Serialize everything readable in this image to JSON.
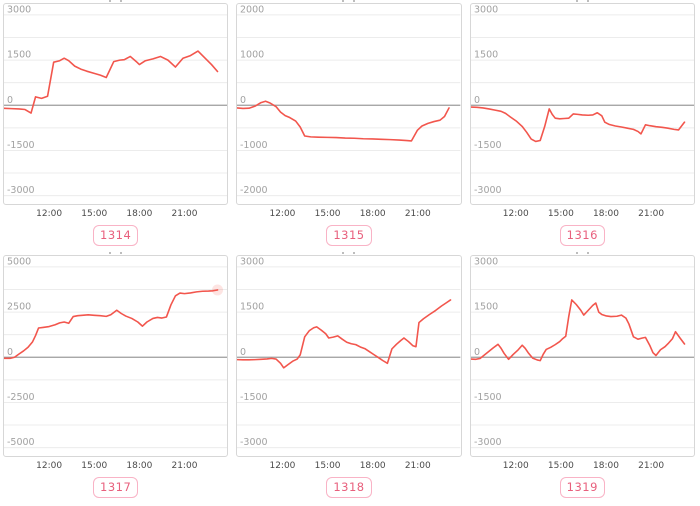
{
  "colors": {
    "line": "#f2564d",
    "line_halo": "rgba(242,86,77,0.16)",
    "zero_line": "#9b9b9b",
    "grid": "#ececec",
    "y_tick_text": "#a2a2a2",
    "x_tick_text": "#4a4a4a",
    "chart_border": "#d7d7d7",
    "button_border": "#f9b3c6",
    "button_text": "#e8607d"
  },
  "x_axis": {
    "tick_labels": [
      "12:00",
      "15:00",
      "18:00",
      "21:00"
    ],
    "tick_hours": [
      12,
      15,
      18,
      21
    ]
  },
  "chart_data": [
    {
      "type": "line",
      "id_label": "1314",
      "xlim": [
        9.0,
        23.85
      ],
      "ylim": [
        -3000,
        3000
      ],
      "y_tick_labels": [
        "3000",
        "1500",
        "0",
        "-1500",
        "-3000"
      ],
      "x_tick_labels": [
        "12:00",
        "15:00",
        "18:00",
        "21:00"
      ],
      "grid": true,
      "legend": "none",
      "end_dot": false,
      "x": [
        9.0,
        9.5,
        10.0,
        10.4,
        10.8,
        11.1,
        11.5,
        11.9,
        12.3,
        12.7,
        13.0,
        13.3,
        13.7,
        14.1,
        14.5,
        15.0,
        15.4,
        15.8,
        16.3,
        16.7,
        17.0,
        17.4,
        17.8,
        18.0,
        18.4,
        18.9,
        19.4,
        19.9,
        20.4,
        20.9,
        21.4,
        21.9,
        22.4,
        22.8,
        23.2
      ],
      "values": [
        -100,
        -110,
        -120,
        -140,
        -260,
        280,
        230,
        300,
        1430,
        1480,
        1560,
        1480,
        1300,
        1200,
        1130,
        1060,
        1000,
        920,
        1450,
        1500,
        1510,
        1620,
        1450,
        1350,
        1480,
        1540,
        1620,
        1500,
        1270,
        1560,
        1650,
        1800,
        1550,
        1350,
        1120
      ]
    },
    {
      "type": "line",
      "id_label": "1315",
      "xlim": [
        9.0,
        23.85
      ],
      "ylim": [
        -2000,
        2000
      ],
      "y_tick_labels": [
        "2000",
        "1000",
        "0",
        "-1000",
        "-2000"
      ],
      "x_tick_labels": [
        "12:00",
        "15:00",
        "18:00",
        "21:00"
      ],
      "grid": true,
      "legend": "none",
      "end_dot": false,
      "x": [
        9.0,
        9.4,
        9.8,
        10.2,
        10.6,
        10.9,
        11.2,
        11.6,
        11.9,
        12.2,
        12.5,
        12.9,
        13.2,
        13.5,
        13.9,
        14.4,
        15.0,
        15.6,
        16.2,
        16.8,
        17.4,
        18.0,
        18.6,
        19.2,
        19.8,
        20.3,
        20.6,
        21.0,
        21.3,
        21.7,
        22.1,
        22.5,
        22.8,
        23.1
      ],
      "values": [
        -60,
        -70,
        -65,
        -20,
        60,
        90,
        50,
        -30,
        -150,
        -230,
        -270,
        -350,
        -480,
        -680,
        -700,
        -705,
        -710,
        -715,
        -725,
        -730,
        -740,
        -745,
        -755,
        -760,
        -770,
        -780,
        -790,
        -550,
        -460,
        -400,
        -360,
        -330,
        -250,
        -60
      ]
    },
    {
      "type": "line",
      "id_label": "1316",
      "xlim": [
        9.0,
        23.85
      ],
      "ylim": [
        -3000,
        3000
      ],
      "y_tick_labels": [
        "3000",
        "1500",
        "0",
        "-1500",
        "-3000"
      ],
      "x_tick_labels": [
        "12:00",
        "15:00",
        "18:00",
        "21:00"
      ],
      "grid": true,
      "legend": "none",
      "end_dot": false,
      "x": [
        9.0,
        9.4,
        9.8,
        10.2,
        10.6,
        11.0,
        11.3,
        11.6,
        12.0,
        12.4,
        12.7,
        13.0,
        13.3,
        13.6,
        13.9,
        14.2,
        14.4,
        14.6,
        14.9,
        15.2,
        15.5,
        15.8,
        16.1,
        16.4,
        16.8,
        17.1,
        17.4,
        17.7,
        17.9,
        18.2,
        18.6,
        19.0,
        19.4,
        19.8,
        20.1,
        20.3,
        20.6,
        20.9,
        21.3,
        21.7,
        22.1,
        22.5,
        22.8,
        23.2
      ],
      "values": [
        -60,
        -70,
        -90,
        -120,
        -160,
        -200,
        -270,
        -380,
        -520,
        -700,
        -900,
        -1120,
        -1200,
        -1170,
        -700,
        -120,
        -300,
        -430,
        -450,
        -440,
        -430,
        -290,
        -300,
        -320,
        -330,
        -320,
        -250,
        -350,
        -560,
        -640,
        -690,
        -720,
        -760,
        -800,
        -870,
        -950,
        -650,
        -680,
        -710,
        -730,
        -760,
        -800,
        -820,
        -560
      ]
    },
    {
      "type": "line",
      "id_label": "1317",
      "xlim": [
        9.0,
        23.85
      ],
      "ylim": [
        -5000,
        5000
      ],
      "y_tick_labels": [
        "5000",
        "2500",
        "0",
        "-2500",
        "-5000"
      ],
      "x_tick_labels": [
        "12:00",
        "15:00",
        "18:00",
        "21:00"
      ],
      "grid": true,
      "legend": "none",
      "end_dot": true,
      "x": [
        9.0,
        9.4,
        9.7,
        10.0,
        10.3,
        10.6,
        10.9,
        11.1,
        11.3,
        11.6,
        12.0,
        12.4,
        12.7,
        13.0,
        13.3,
        13.6,
        13.9,
        14.2,
        14.6,
        15.0,
        15.4,
        15.8,
        16.1,
        16.5,
        16.8,
        17.1,
        17.5,
        17.9,
        18.2,
        18.5,
        18.9,
        19.2,
        19.5,
        19.8,
        20.1,
        20.4,
        20.7,
        21.0,
        21.4,
        21.8,
        22.2,
        22.6,
        22.9,
        23.2
      ],
      "values": [
        -60,
        -60,
        0,
        180,
        350,
        550,
        850,
        1200,
        1620,
        1650,
        1700,
        1800,
        1900,
        1950,
        1880,
        2250,
        2300,
        2320,
        2350,
        2320,
        2300,
        2260,
        2350,
        2600,
        2420,
        2280,
        2150,
        1950,
        1720,
        1950,
        2150,
        2200,
        2170,
        2230,
        2900,
        3400,
        3550,
        3520,
        3560,
        3620,
        3650,
        3660,
        3680,
        3720
      ]
    },
    {
      "type": "line",
      "id_label": "1318",
      "xlim": [
        9.0,
        23.85
      ],
      "ylim": [
        -3000,
        3000
      ],
      "y_tick_labels": [
        "3000",
        "1500",
        "0",
        "-1500",
        "-3000"
      ],
      "x_tick_labels": [
        "12:00",
        "15:00",
        "18:00",
        "21:00"
      ],
      "grid": true,
      "legend": "none",
      "end_dot": false,
      "x": [
        9.0,
        9.4,
        9.8,
        10.2,
        10.6,
        11.0,
        11.3,
        11.6,
        11.9,
        12.1,
        12.4,
        12.7,
        13.0,
        13.2,
        13.5,
        13.8,
        14.1,
        14.3,
        14.6,
        14.9,
        15.1,
        15.4,
        15.7,
        16.0,
        16.3,
        16.6,
        16.9,
        17.2,
        17.5,
        17.8,
        18.1,
        18.4,
        18.7,
        19.0,
        19.3,
        19.6,
        19.9,
        20.1,
        20.4,
        20.7,
        20.9,
        21.1,
        21.4,
        21.8,
        22.2,
        22.6,
        22.9,
        23.2
      ],
      "values": [
        -80,
        -85,
        -85,
        -80,
        -70,
        -55,
        -35,
        -60,
        -200,
        -350,
        -240,
        -130,
        -60,
        80,
        680,
        880,
        980,
        1010,
        900,
        780,
        640,
        670,
        710,
        600,
        500,
        450,
        420,
        340,
        290,
        190,
        90,
        -10,
        -110,
        -200,
        280,
        430,
        560,
        640,
        520,
        380,
        350,
        1150,
        1280,
        1420,
        1550,
        1700,
        1800,
        1900
      ]
    },
    {
      "type": "line",
      "id_label": "1319",
      "xlim": [
        9.0,
        23.85
      ],
      "ylim": [
        -3000,
        3000
      ],
      "y_tick_labels": [
        "3000",
        "1500",
        "0",
        "-1500",
        "-3000"
      ],
      "x_tick_labels": [
        "12:00",
        "15:00",
        "18:00",
        "21:00"
      ],
      "grid": true,
      "legend": "none",
      "end_dot": false,
      "x": [
        9.0,
        9.3,
        9.6,
        9.9,
        10.2,
        10.5,
        10.8,
        11.0,
        11.2,
        11.5,
        11.8,
        12.1,
        12.4,
        12.6,
        12.8,
        13.1,
        13.4,
        13.6,
        13.8,
        14.0,
        14.3,
        14.6,
        14.9,
        15.1,
        15.3,
        15.5,
        15.7,
        16.0,
        16.3,
        16.5,
        16.8,
        17.1,
        17.3,
        17.5,
        17.7,
        18.0,
        18.3,
        18.7,
        19.0,
        19.3,
        19.5,
        19.8,
        20.1,
        20.4,
        20.6,
        20.9,
        21.1,
        21.3,
        21.6,
        21.9,
        22.1,
        22.4,
        22.6,
        22.9,
        23.2
      ],
      "values": [
        -60,
        -70,
        -40,
        80,
        200,
        320,
        430,
        300,
        130,
        -70,
        90,
        230,
        400,
        300,
        150,
        -30,
        -90,
        -110,
        100,
        260,
        330,
        420,
        520,
        620,
        700,
        1350,
        1900,
        1750,
        1560,
        1400,
        1560,
        1720,
        1800,
        1500,
        1420,
        1370,
        1350,
        1360,
        1400,
        1300,
        1100,
        680,
        600,
        640,
        660,
        380,
        150,
        60,
        250,
        350,
        450,
        620,
        850,
        640,
        440
      ]
    }
  ]
}
